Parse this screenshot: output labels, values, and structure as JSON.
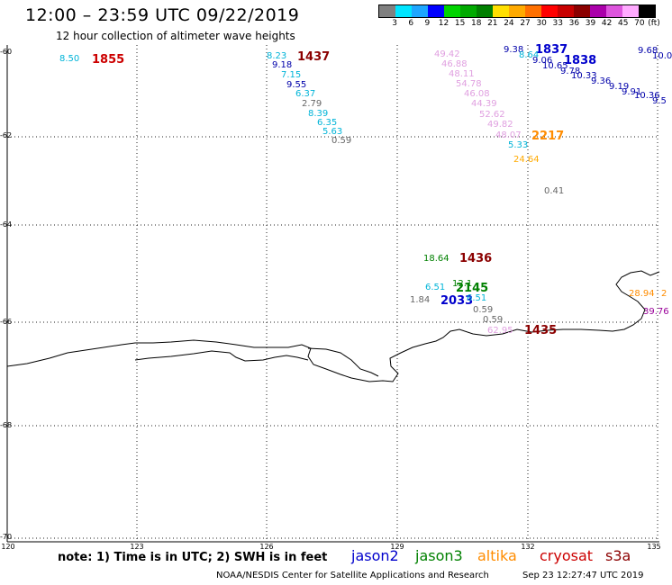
{
  "title": "12:00 – 23:59 UTC 09/22/2019",
  "subtitle": "12 hour collection of altimeter wave heights",
  "legend": {
    "colors": [
      "#808080",
      "#00e5ff",
      "#1ea6ff",
      "#0000ff",
      "#00d400",
      "#00aa00",
      "#008000",
      "#ffdf00",
      "#ffaa00",
      "#ff7000",
      "#ff0000",
      "#c80000",
      "#8b0000",
      "#aa00aa",
      "#dd55dd",
      "#ffaaff",
      "#000000"
    ],
    "tick_labels": [
      "3",
      "6",
      "9",
      "12",
      "15",
      "18",
      "21",
      "24",
      "27",
      "30",
      "33",
      "36",
      "39",
      "42",
      "45",
      "70"
    ],
    "unit": "(ft)"
  },
  "axes": {
    "lat_labels": [
      "-60",
      "-62",
      "-64",
      "-66",
      "-68",
      "-70"
    ],
    "lon_labels": [
      "120",
      "123",
      "126",
      "129",
      "132",
      "135"
    ]
  },
  "colors": {
    "jason2": "#0000cc",
    "jason3": "#008000",
    "altika": "#ff8c00",
    "cryosat": "#cc0000",
    "s3a": "#8b0000",
    "gray": "#666666",
    "cyan": "#00b4d8",
    "pink": "#e0a0e0",
    "purple": "#990099"
  },
  "observations": [
    {
      "text": "8.50",
      "color": "#00b4d8"
    },
    {
      "text": "1855",
      "color": "#cc0000",
      "time": true
    },
    {
      "text": "8.23",
      "color": "#00b4d8"
    },
    {
      "text": "1437",
      "color": "#8b0000",
      "time": true
    },
    {
      "text": "9.18",
      "color": "#0000aa"
    },
    {
      "text": "7.15",
      "color": "#00b4d8"
    },
    {
      "text": "9.55",
      "color": "#0000aa"
    },
    {
      "text": "6.37",
      "color": "#00b4d8"
    },
    {
      "text": "2.79",
      "color": "#666666"
    },
    {
      "text": "8.39",
      "color": "#00b4d8"
    },
    {
      "text": "6.35",
      "color": "#00b4d8"
    },
    {
      "text": "5.63",
      "color": "#00b4d8"
    },
    {
      "text": "0.59",
      "color": "#666666"
    },
    {
      "text": "49.42",
      "color": "#e0a0e0"
    },
    {
      "text": "46.88",
      "color": "#e0a0e0"
    },
    {
      "text": "48.11",
      "color": "#e0a0e0"
    },
    {
      "text": "54.78",
      "color": "#e0a0e0"
    },
    {
      "text": "46.08",
      "color": "#e0a0e0"
    },
    {
      "text": "44.39",
      "color": "#e0a0e0"
    },
    {
      "text": "52.62",
      "color": "#e0a0e0"
    },
    {
      "text": "49.82",
      "color": "#e0a0e0"
    },
    {
      "text": "48.07",
      "color": "#e0a0e0"
    },
    {
      "text": "2217",
      "color": "#ff8c00",
      "time": true
    },
    {
      "text": "5.33",
      "color": "#00b4d8"
    },
    {
      "text": "24.64",
      "color": "#ffaa00"
    },
    {
      "text": "0.41",
      "color": "#666666"
    },
    {
      "text": "9.38",
      "color": "#0000aa"
    },
    {
      "text": "1837",
      "color": "#0000cc",
      "time": true
    },
    {
      "text": "8.64",
      "color": "#00b4d8"
    },
    {
      "text": "9.06",
      "color": "#0000aa"
    },
    {
      "text": "1838",
      "color": "#0000cc",
      "time": true
    },
    {
      "text": "10.65",
      "color": "#0000aa"
    },
    {
      "text": "9.78",
      "color": "#0000aa"
    },
    {
      "text": "10.33",
      "color": "#0000aa"
    },
    {
      "text": "9.36",
      "color": "#0000aa"
    },
    {
      "text": "9.19",
      "color": "#0000aa"
    },
    {
      "text": "9.91",
      "color": "#0000aa"
    },
    {
      "text": "10.36",
      "color": "#0000aa"
    },
    {
      "text": "9.5",
      "color": "#0000aa"
    },
    {
      "text": "9.68",
      "color": "#0000aa"
    },
    {
      "text": "10.0",
      "color": "#0000aa"
    },
    {
      "text": "18.64",
      "color": "#008000"
    },
    {
      "text": "1436",
      "color": "#8b0000",
      "time": true
    },
    {
      "text": "12.1",
      "color": "#008000"
    },
    {
      "text": "6.51",
      "color": "#00b4d8"
    },
    {
      "text": "2145",
      "color": "#008000",
      "time": true
    },
    {
      "text": "1.84",
      "color": "#666666"
    },
    {
      "text": "2033",
      "color": "#0000cc",
      "time": true
    },
    {
      "text": "6.51",
      "color": "#00b4d8"
    },
    {
      "text": "0.59",
      "color": "#666666"
    },
    {
      "text": "0.59",
      "color": "#666666"
    },
    {
      "text": "62.95",
      "color": "#e0a0e0"
    },
    {
      "text": "1435",
      "color": "#8b0000",
      "time": true
    },
    {
      "text": "28.94",
      "color": "#ff8c00"
    },
    {
      "text": "2",
      "color": "#ff8c00"
    },
    {
      "text": "39.76",
      "color": "#990099"
    }
  ],
  "note": "note: 1) Time is in UTC; 2) SWH is in feet",
  "satellites": [
    {
      "name": "jason2",
      "color": "#0000cc"
    },
    {
      "name": "jason3",
      "color": "#008000"
    },
    {
      "name": "altika",
      "color": "#ff8c00"
    },
    {
      "name": "cryosat",
      "color": "#cc0000"
    },
    {
      "name": "s3a",
      "color": "#8b0000"
    }
  ],
  "footer": "NOAA/NESDIS Center for Satellite Applications and Research",
  "footer_time": "Sep 23 12:27:47 UTC 2019"
}
